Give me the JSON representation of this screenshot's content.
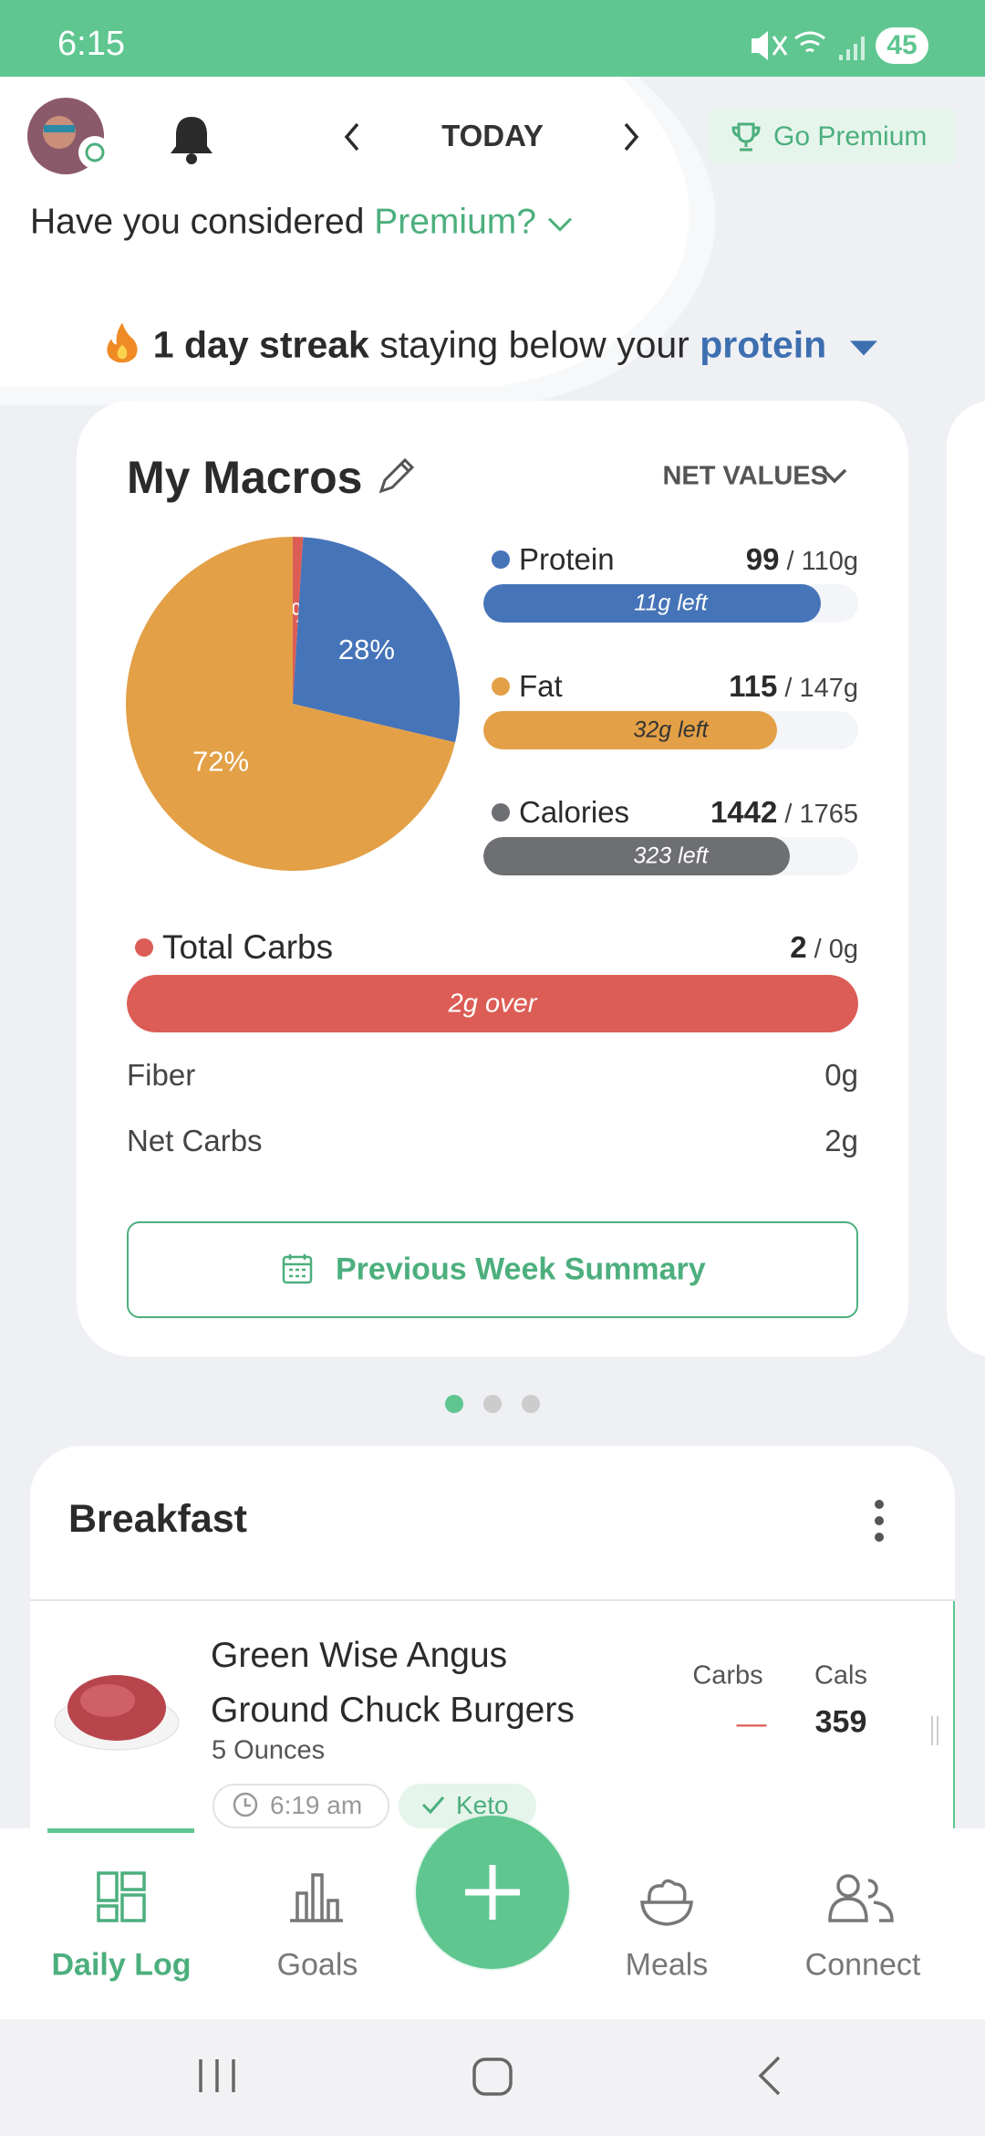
{
  "status_bar": {
    "time": "6:15",
    "battery": "45"
  },
  "header": {
    "date": "TODAY",
    "premium_button": "Go Premium",
    "prompt": "Have you considered",
    "prompt_link": "Premium?"
  },
  "streak": {
    "count": "1 day streak",
    "text": "staying below your",
    "nutrient": "protein"
  },
  "macros": {
    "title": "My Macros",
    "mode": "NET VALUES",
    "pie": {
      "type": "pie",
      "values": [
        1,
        28,
        72
      ],
      "value_labels": [
        "1%",
        "28%",
        "72%"
      ],
      "colors": [
        "#dc5d55",
        "#4674b9",
        "#e3a046"
      ]
    },
    "items": [
      {
        "name": "Protein",
        "value": 99,
        "max": 110,
        "max_label": "/ 110g",
        "remaining": "11g left",
        "color": "#4674b9"
      },
      {
        "name": "Fat",
        "value": 115,
        "max": 147,
        "max_label": "/ 147g",
        "remaining": "32g left",
        "color": "#e3a046"
      },
      {
        "name": "Calories",
        "value": 1442,
        "max": 1765,
        "max_label": "/ 1765",
        "remaining": "323 left",
        "color": "#6d6f72"
      }
    ],
    "carbs": {
      "name": "Total Carbs",
      "value": 2,
      "max": 0,
      "max_label": "/ 0g",
      "remaining": "2g over",
      "color": "#dc5d55"
    },
    "details": [
      {
        "label": "Fiber",
        "value": "0g"
      },
      {
        "label": "Net Carbs",
        "value": "2g"
      }
    ],
    "summary_button": "Previous Week Summary"
  },
  "meal": {
    "title": "Breakfast",
    "columns": [
      "Carbs",
      "Cals"
    ],
    "food": {
      "name": "Green Wise Angus Ground Chuck Burgers",
      "amount": "5 Ounces",
      "time": "6:19 am",
      "tag": "Keto",
      "carbs": "—",
      "cals": "359"
    }
  },
  "nav": [
    "Daily Log",
    "Goals",
    "Meals",
    "Connect"
  ]
}
